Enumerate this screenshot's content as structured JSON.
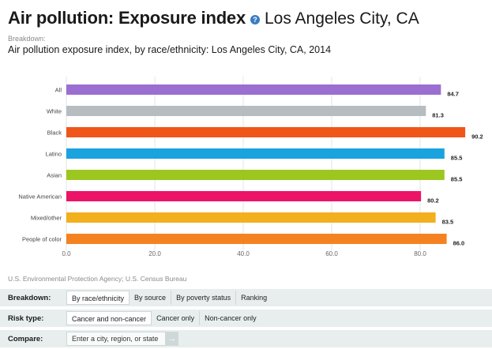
{
  "header": {
    "title_main": "Air pollution: Exposure index",
    "info_glyph": "?",
    "title_place": "Los Angeles City, CA",
    "breakdown_caption": "Breakdown:",
    "subtitle": "Air pollution exposure index, by race/ethnicity: Los Angeles City, CA, 2014"
  },
  "chart_data": {
    "type": "bar",
    "orientation": "horizontal",
    "categories": [
      "All",
      "White",
      "Black",
      "Latino",
      "Asian",
      "Native American",
      "Mixed/other",
      "People of color"
    ],
    "values": [
      84.7,
      81.3,
      90.2,
      85.5,
      85.5,
      80.2,
      83.5,
      86.0
    ],
    "value_labels": [
      "84.7",
      "81.3",
      "90.2",
      "85.5",
      "85.5",
      "80.2",
      "83.5",
      "86.0"
    ],
    "colors": [
      "#9b6fd1",
      "#b7bcc0",
      "#f0561a",
      "#1aa3df",
      "#9cc720",
      "#ec1466",
      "#f2b01e",
      "#f58220"
    ],
    "xlim": [
      0,
      95
    ],
    "ticks": [
      0,
      20,
      40,
      60,
      80
    ],
    "tick_labels": [
      "0.0",
      "20.0",
      "40.0",
      "60.0",
      "80.0"
    ],
    "grid": true,
    "title": "Air pollution exposure index, by race/ethnicity: Los Angeles City, CA, 2014",
    "xlabel": "",
    "ylabel": ""
  },
  "source": "U.S. Environmental Protection Agency; U.S. Census Bureau",
  "controls": {
    "breakdown": {
      "label": "Breakdown:",
      "options": [
        "By race/ethnicity",
        "By source",
        "By poverty status",
        "Ranking"
      ],
      "active": "By race/ethnicity"
    },
    "risk": {
      "label": "Risk type:",
      "options": [
        "Cancer and non-cancer",
        "Cancer only",
        "Non-cancer only"
      ],
      "active": "Cancer and non-cancer"
    },
    "compare": {
      "label": "Compare:",
      "placeholder": "Enter a city, region, or state",
      "go_glyph": "→"
    }
  }
}
